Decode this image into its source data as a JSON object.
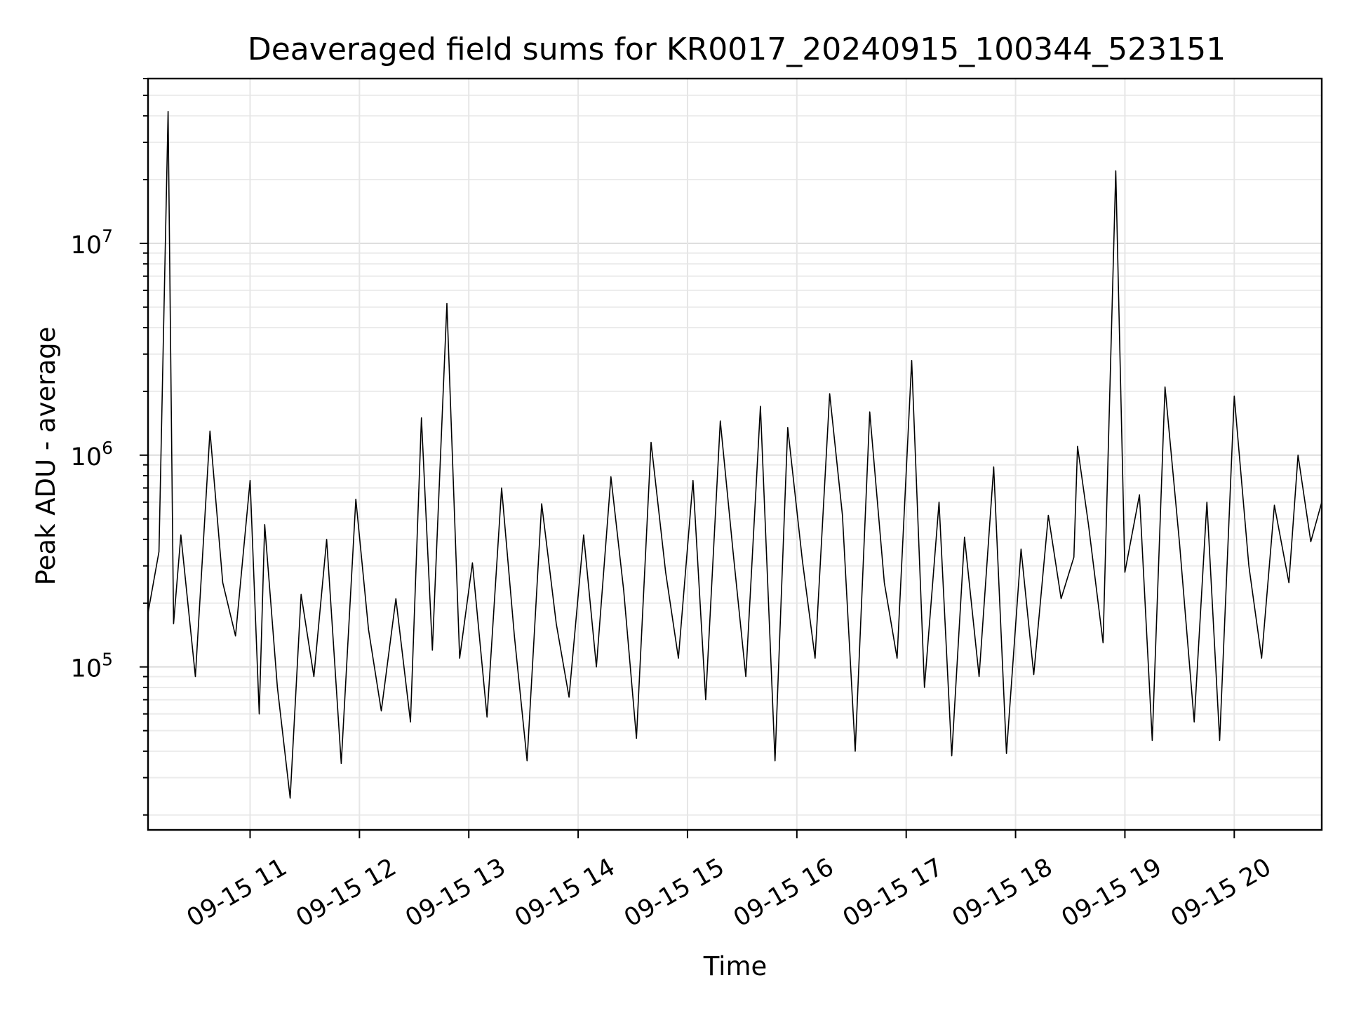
{
  "chart_data": {
    "type": "line",
    "title": "Deaveraged field sums for KR0017_20240915_100344_523151",
    "xlabel": "Time",
    "ylabel": "Peak ADU - average",
    "y_scale": "log",
    "x_range": [
      "2024-09-15T10:04",
      "2024-09-15T20:48"
    ],
    "ylim": [
      17000,
      60000000
    ],
    "x_tick_labels": [
      "09-15 11",
      "09-15 12",
      "09-15 13",
      "09-15 14",
      "09-15 15",
      "09-15 16",
      "09-15 17",
      "09-15 18",
      "09-15 19",
      "09-15 20"
    ],
    "y_tick_labels": [
      {
        "value": 100000,
        "base": "10",
        "exponent": "5"
      },
      {
        "value": 1000000,
        "base": "10",
        "exponent": "6"
      },
      {
        "value": 10000000,
        "base": "10",
        "exponent": "7"
      }
    ],
    "grid": true,
    "legend": "none",
    "line_color": "#000000",
    "series": [
      {
        "x": [
          "2024-09-15T10:04",
          "2024-09-15T10:10",
          "2024-09-15T10:15",
          "2024-09-15T10:18",
          "2024-09-15T10:22",
          "2024-09-15T10:30",
          "2024-09-15T10:38",
          "2024-09-15T10:45",
          "2024-09-15T10:52",
          "2024-09-15T11:00",
          "2024-09-15T11:05",
          "2024-09-15T11:08",
          "2024-09-15T11:15",
          "2024-09-15T11:22",
          "2024-09-15T11:28",
          "2024-09-15T11:35",
          "2024-09-15T11:42",
          "2024-09-15T11:50",
          "2024-09-15T11:58",
          "2024-09-15T12:05",
          "2024-09-15T12:12",
          "2024-09-15T12:20",
          "2024-09-15T12:28",
          "2024-09-15T12:34",
          "2024-09-15T12:40",
          "2024-09-15T12:48",
          "2024-09-15T12:55",
          "2024-09-15T13:02",
          "2024-09-15T13:10",
          "2024-09-15T13:18",
          "2024-09-15T13:25",
          "2024-09-15T13:32",
          "2024-09-15T13:40",
          "2024-09-15T13:48",
          "2024-09-15T13:55",
          "2024-09-15T14:03",
          "2024-09-15T14:10",
          "2024-09-15T14:18",
          "2024-09-15T14:25",
          "2024-09-15T14:32",
          "2024-09-15T14:40",
          "2024-09-15T14:48",
          "2024-09-15T14:55",
          "2024-09-15T15:03",
          "2024-09-15T15:10",
          "2024-09-15T15:18",
          "2024-09-15T15:25",
          "2024-09-15T15:32",
          "2024-09-15T15:40",
          "2024-09-15T15:48",
          "2024-09-15T15:55",
          "2024-09-15T16:03",
          "2024-09-15T16:10",
          "2024-09-15T16:18",
          "2024-09-15T16:25",
          "2024-09-15T16:32",
          "2024-09-15T16:40",
          "2024-09-15T16:48",
          "2024-09-15T16:55",
          "2024-09-15T17:03",
          "2024-09-15T17:10",
          "2024-09-15T17:18",
          "2024-09-15T17:25",
          "2024-09-15T17:32",
          "2024-09-15T17:40",
          "2024-09-15T17:48",
          "2024-09-15T17:55",
          "2024-09-15T18:03",
          "2024-09-15T18:10",
          "2024-09-15T18:18",
          "2024-09-15T18:25",
          "2024-09-15T18:32",
          "2024-09-15T18:34",
          "2024-09-15T18:40",
          "2024-09-15T18:48",
          "2024-09-15T18:55",
          "2024-09-15T19:00",
          "2024-09-15T19:08",
          "2024-09-15T19:15",
          "2024-09-15T19:22",
          "2024-09-15T19:30",
          "2024-09-15T19:38",
          "2024-09-15T19:45",
          "2024-09-15T19:52",
          "2024-09-15T20:00",
          "2024-09-15T20:08",
          "2024-09-15T20:15",
          "2024-09-15T20:22",
          "2024-09-15T20:30",
          "2024-09-15T20:35",
          "2024-09-15T20:42",
          "2024-09-15T20:48"
        ],
        "y": [
          180000,
          350000,
          42000000,
          160000,
          420000,
          90000,
          1300000,
          250000,
          140000,
          760000,
          60000,
          470000,
          80000,
          24000,
          220000,
          90000,
          400000,
          35000,
          620000,
          150000,
          62000,
          210000,
          55000,
          1500000,
          120000,
          5200000,
          110000,
          310000,
          58000,
          700000,
          140000,
          36000,
          590000,
          160000,
          72000,
          420000,
          100000,
          790000,
          230000,
          46000,
          1150000,
          280000,
          110000,
          760000,
          70000,
          1450000,
          350000,
          90000,
          1700000,
          36000,
          1350000,
          320000,
          110000,
          1950000,
          520000,
          40000,
          1600000,
          250000,
          110000,
          2800000,
          80000,
          600000,
          38000,
          410000,
          90000,
          880000,
          39000,
          360000,
          92000,
          520000,
          210000,
          330000,
          1100000,
          470000,
          130000,
          22000000,
          280000,
          650000,
          45000,
          2100000,
          380000,
          55000,
          600000,
          45000,
          1900000,
          300000,
          110000,
          580000,
          250000,
          1000000,
          390000,
          600000
        ]
      }
    ]
  }
}
